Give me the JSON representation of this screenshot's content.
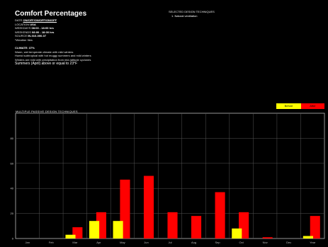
{
  "header": {
    "title": "Comfort Percentages",
    "meta": [
      {
        "key": "DATE",
        "value": "ON/OFF/ON/OFF/ON/OFF"
      },
      {
        "key": "LOCATION",
        "value": "USA"
      },
      {
        "key": "WEEKDAYS",
        "value": "08:00 - 18:00 hrs"
      },
      {
        "key": "WEEKENDS",
        "value": "08:00 - 18:00 hrs"
      },
      {
        "key": "SOURCE",
        "value": "IN-010-000-07"
      }
    ],
    "note": "*Weather files"
  },
  "climate": {
    "heading": "CLIMATE: 37%",
    "lines": [
      "Warm, wet temperate climate with mild winters",
      "Humid subtropical with hot muggy summers and mild winters",
      "Winters are mild with precipitation from mid-latitude cyclones"
    ],
    "last": "Summers (April) above or equal to 23°F"
  },
  "selected": {
    "heading": "SELECTED DESIGN TECHNIQUES",
    "items": [
      "1. Natural ventilation"
    ]
  },
  "chart_heading": "MULTIPLE PASSIVE DESIGN TECHNIQUES",
  "legend": {
    "before": "Before",
    "after": "After"
  },
  "colors": {
    "before": "#ffff00",
    "after": "#ff0000",
    "grid": "#555555",
    "axis": "#bbbbbb"
  },
  "chart_data": {
    "type": "bar",
    "categories": [
      "Jan",
      "Feb",
      "Mar",
      "Apr",
      "May",
      "Jun",
      "Jul",
      "Aug",
      "Sep",
      "Oct",
      "Nov",
      "Dec",
      "Year"
    ],
    "series": [
      {
        "name": "Before",
        "values": [
          0,
          0,
          3,
          14,
          14,
          0,
          0,
          0,
          0,
          8,
          0,
          0,
          2
        ]
      },
      {
        "name": "After",
        "values": [
          0,
          0,
          9,
          21,
          47,
          50,
          21,
          18,
          37,
          21,
          1,
          0,
          18
        ]
      }
    ],
    "yticks": [
      0,
      20,
      40,
      60,
      80
    ],
    "ylim": [
      0,
      100
    ],
    "grid": true,
    "legend_position": "top-right"
  }
}
